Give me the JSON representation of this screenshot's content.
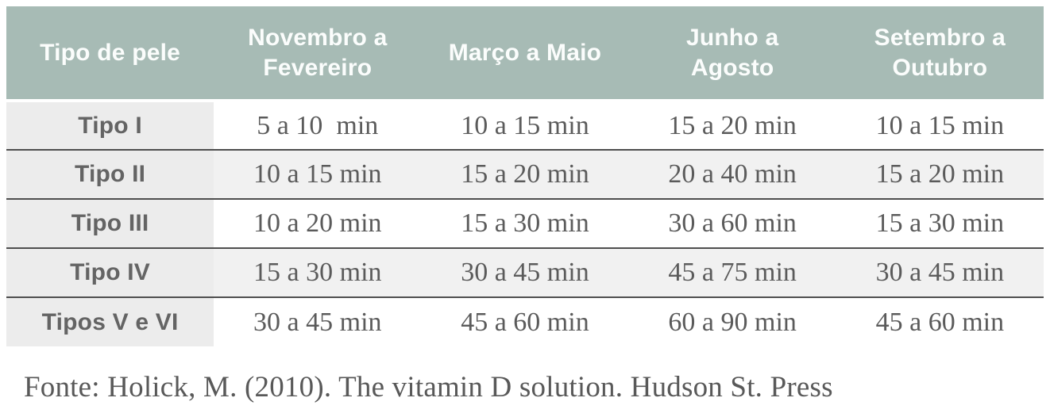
{
  "table": {
    "columns": [
      "Tipo de pele",
      "Novembro a Fevereiro",
      "Março a Maio",
      "Junho a Agosto",
      "Setembro a Outubro"
    ],
    "rows": [
      {
        "label": "Tipo I",
        "values": [
          "5 a 10  min",
          "10 a 15 min",
          "15 a 20 min",
          "10 a 15 min"
        ]
      },
      {
        "label": "Tipo II",
        "values": [
          "10 a 15 min",
          "15 a 20 min",
          "20 a 40 min",
          "15 a 20 min"
        ]
      },
      {
        "label": "Tipo III",
        "values": [
          "10 a 20 min",
          "15 a 30 min",
          "30 a 60 min",
          "15 a 30 min"
        ]
      },
      {
        "label": "Tipo IV",
        "values": [
          "15 a 30 min",
          "30 a 45 min",
          "45 a 75 min",
          "30 a 45 min"
        ]
      },
      {
        "label": "Tipos V e VI",
        "values": [
          "30 a 45 min",
          "45 a 60 min",
          "60 a 90 min",
          "45 a 60 min"
        ]
      }
    ]
  },
  "footer": {
    "source": "Fonte: Holick, M. (2010). The vitamin D solution. Hudson St. Press"
  },
  "colors": {
    "header_bg": "#a7bbb5",
    "header_text": "#fbfdfc",
    "label_col_bg": "#ececec",
    "even_row_bg": "#f1f1f1",
    "odd_row_bg": "#ffffff",
    "row_separator": "#4e4e4e",
    "body_text": "#5b5b5b"
  },
  "chart_data": {
    "type": "table",
    "columns": [
      "Tipo de pele",
      "Novembro a Fevereiro",
      "Março a Maio",
      "Junho a Agosto",
      "Setembro a Outubro"
    ],
    "rows": [
      [
        "Tipo I",
        "5 a 10 min",
        "10 a 15 min",
        "15 a 20 min",
        "10 a 15 min"
      ],
      [
        "Tipo II",
        "10 a 15 min",
        "15 a 20 min",
        "20 a 40 min",
        "15 a 20 min"
      ],
      [
        "Tipo III",
        "10 a 20 min",
        "15 a 30 min",
        "30 a 60 min",
        "15 a 30 min"
      ],
      [
        "Tipo IV",
        "15 a 30 min",
        "30 a 45 min",
        "45 a 75 min",
        "30 a 45 min"
      ],
      [
        "Tipos V e VI",
        "30 a 45 min",
        "45 a 60 min",
        "60 a 90 min",
        "45 a 60 min"
      ]
    ],
    "source": "Fonte: Holick, M. (2010). The vitamin D solution. Hudson St. Press",
    "units": "minutes of sun exposure per season"
  }
}
